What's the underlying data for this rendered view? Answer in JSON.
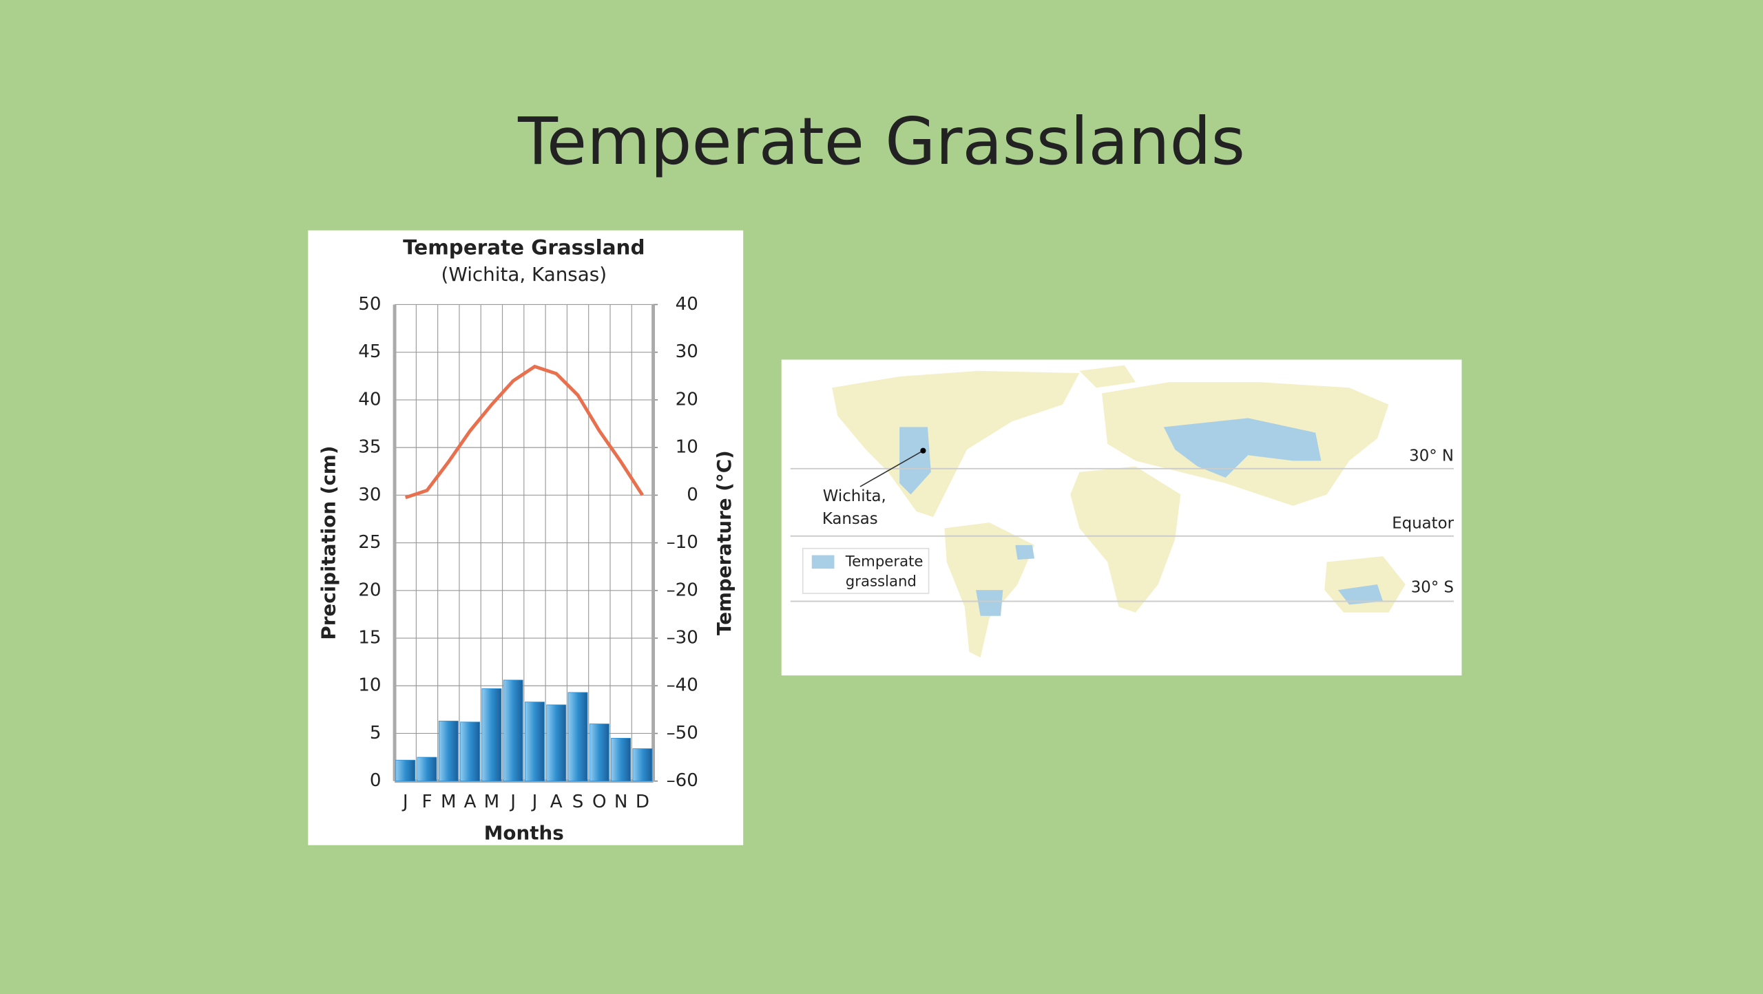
{
  "slide": {
    "title": "Temperate Grasslands"
  },
  "chart_data": {
    "type": "bar",
    "title": "Temperate Grassland",
    "subtitle": "(Wichita, Kansas)",
    "xlabel": "Months",
    "ylabel": "Precipitation (cm)",
    "y2label": "Temperature (°C)",
    "categories": [
      "J",
      "F",
      "M",
      "A",
      "M",
      "J",
      "J",
      "A",
      "S",
      "O",
      "N",
      "D"
    ],
    "series": [
      {
        "type": "bar",
        "color": "#2f8fd0",
        "values": [
          2.2,
          2.5,
          6.3,
          6.2,
          9.7,
          10.6,
          8.3,
          8.0,
          9.3,
          6.0,
          4.5,
          3.4
        ]
      },
      {
        "type": "line",
        "axis": "y2",
        "color": "#e8704f",
        "values": [
          -0.5,
          1,
          7,
          13.5,
          19,
          24,
          27,
          25.5,
          21,
          13.5,
          7,
          0
        ]
      }
    ],
    "ylim": [
      0,
      50
    ],
    "yticks": [
      0,
      5,
      10,
      15,
      20,
      25,
      30,
      35,
      40,
      45,
      50
    ],
    "y2lim": [
      -60,
      40
    ],
    "y2ticks": [
      {
        "value": -60,
        "label": "–60"
      },
      {
        "value": -50,
        "label": "–50"
      },
      {
        "value": -40,
        "label": "–40"
      },
      {
        "value": -30,
        "label": "–30"
      },
      {
        "value": -20,
        "label": "–20"
      },
      {
        "value": -10,
        "label": "–10"
      },
      0,
      10,
      20,
      30,
      40
    ],
    "ylabel_color": "#29a3da",
    "y2label_color": "#e2324c",
    "grid": true
  },
  "map": {
    "latitudes": [
      "30° N",
      "Equator",
      "30° S"
    ],
    "city": [
      "Wichita,",
      "Kansas"
    ],
    "legend": [
      "Temperate",
      "grassland"
    ]
  }
}
